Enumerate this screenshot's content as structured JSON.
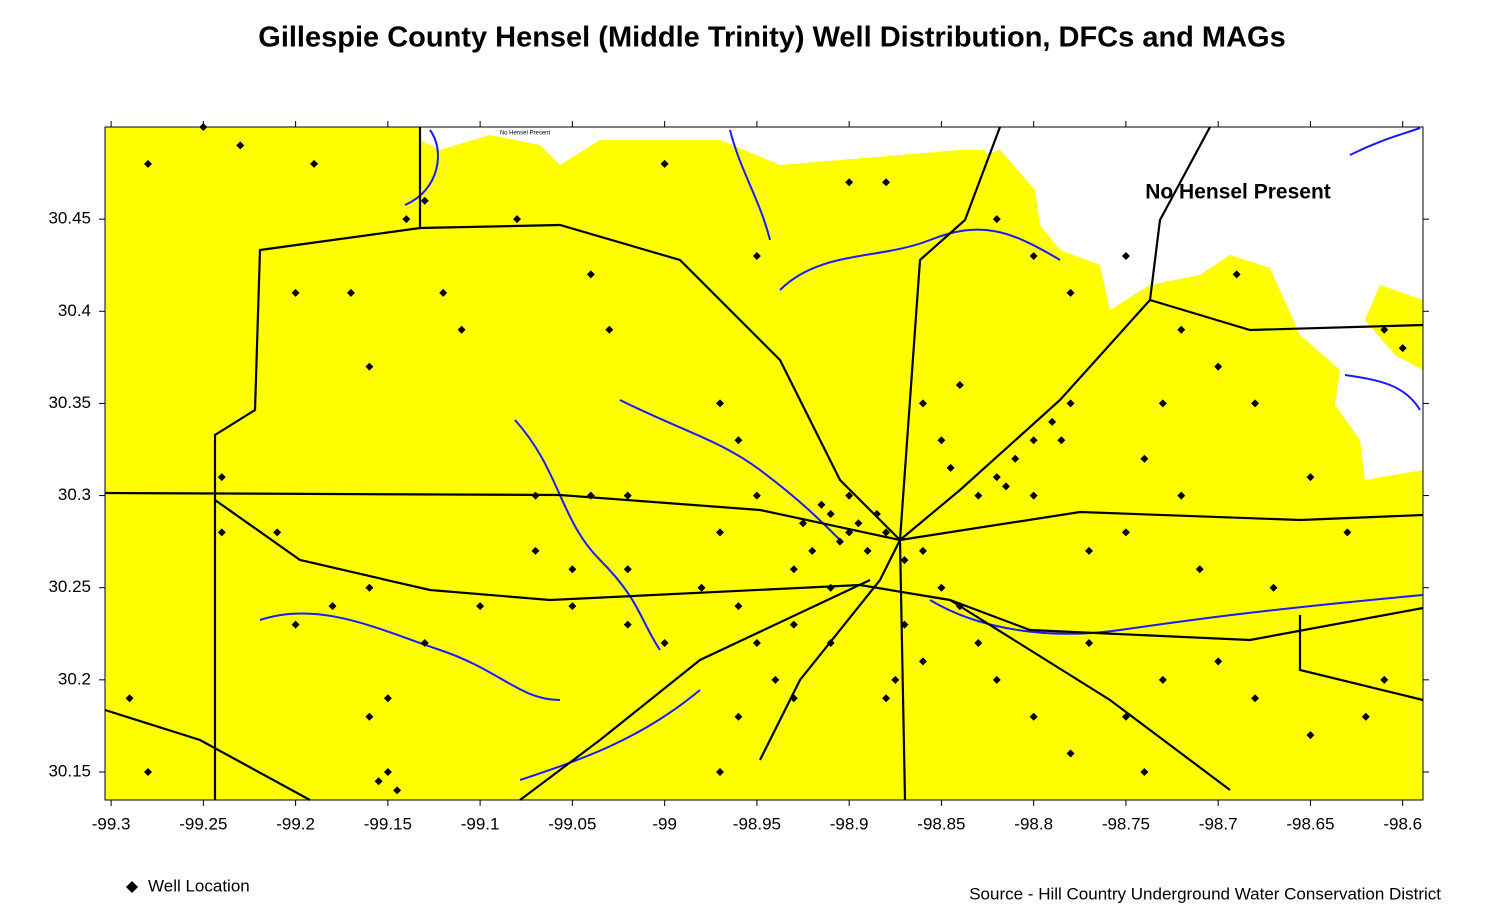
{
  "chart_data": {
    "type": "scatter",
    "title": "Gillespie County Hensel (Middle Trinity) Well Distribution, DFCs and MAGs",
    "annotations": [
      "No Hensel Present",
      "No Hensel Present"
    ],
    "source": "Source - Hill Country Underground Water Conservation District",
    "xlim": [
      -99.3033,
      -98.589
    ],
    "ylim": [
      30.1348,
      30.5
    ],
    "xticks": [
      -99.3,
      -99.25,
      -99.2,
      -99.15,
      -99.1,
      -99.05,
      -99,
      -98.95,
      -98.9,
      -98.85,
      -98.8,
      -98.75,
      -98.7,
      -98.65,
      -98.6
    ],
    "yticks": [
      30.15,
      30.2,
      30.25,
      30.3,
      30.35,
      30.4,
      30.45
    ],
    "series": [
      {
        "name": "Well Location",
        "color": "#000000",
        "x": [
          -98.91,
          -98.9,
          -98.895,
          -98.905,
          -98.92,
          -98.885,
          -98.89,
          -98.915,
          -98.9,
          -98.88,
          -98.87,
          -98.86,
          -98.925,
          -98.93,
          -98.91,
          -98.82,
          -98.815,
          -98.83,
          -98.81,
          -98.8,
          -98.79,
          -98.78,
          -98.785,
          -98.845,
          -98.85,
          -98.86,
          -98.84,
          -98.8,
          -98.87,
          -98.86,
          -98.88,
          -98.875,
          -98.93,
          -98.94,
          -98.95,
          -98.96,
          -98.97,
          -98.85,
          -98.84,
          -98.83,
          -98.82,
          -98.8,
          -98.78,
          -98.75,
          -98.73,
          -98.7,
          -98.68,
          -98.65,
          -98.62,
          -98.61,
          -98.77,
          -98.74,
          -99.15,
          -99.145,
          -99.155,
          -99.16,
          -99.15,
          -99.2,
          -99.18,
          -99.16,
          -99.13,
          -99.1,
          -99.07,
          -99.05,
          -99.02,
          -99.0,
          -99.04,
          -99.02,
          -99.07,
          -99.21,
          -99.24,
          -99.24,
          -99.28,
          -99.29,
          -99.28,
          -99.25,
          -99.23,
          -99.19,
          -99.14,
          -99.2,
          -99.17,
          -99.12,
          -99.11,
          -99.16,
          -99.13,
          -99.08,
          -99.04,
          -99.03,
          -99.0,
          -98.95,
          -98.9,
          -98.88,
          -98.82,
          -98.8,
          -98.78,
          -98.75,
          -98.72,
          -98.7,
          -98.73,
          -98.68,
          -98.74,
          -98.72,
          -98.65,
          -98.6,
          -98.61,
          -98.63,
          -98.67,
          -98.71,
          -98.75,
          -98.77,
          -98.69,
          -98.97,
          -98.98,
          -98.96,
          -98.95,
          -98.96,
          -98.97,
          -99.02,
          -99.05,
          -98.93,
          -98.91
        ],
        "y": [
          30.29,
          30.28,
          30.285,
          30.275,
          30.27,
          30.29,
          30.27,
          30.295,
          30.3,
          30.28,
          30.265,
          30.27,
          30.285,
          30.26,
          30.25,
          30.31,
          30.305,
          30.3,
          30.32,
          30.33,
          30.34,
          30.35,
          30.33,
          30.315,
          30.33,
          30.35,
          30.36,
          30.3,
          30.23,
          30.21,
          30.19,
          30.2,
          30.19,
          30.2,
          30.22,
          30.18,
          30.15,
          30.25,
          30.24,
          30.22,
          30.2,
          30.18,
          30.16,
          30.18,
          30.2,
          30.21,
          30.19,
          30.17,
          30.18,
          30.2,
          30.22,
          30.15,
          30.15,
          30.14,
          30.145,
          30.18,
          30.19,
          30.23,
          30.24,
          30.25,
          30.22,
          30.24,
          30.27,
          30.24,
          30.23,
          30.22,
          30.3,
          30.3,
          30.3,
          30.28,
          30.28,
          30.31,
          30.15,
          30.19,
          30.48,
          30.5,
          30.49,
          30.48,
          30.45,
          30.41,
          30.41,
          30.41,
          30.39,
          30.37,
          30.46,
          30.45,
          30.42,
          30.39,
          30.48,
          30.43,
          30.47,
          30.47,
          30.45,
          30.43,
          30.41,
          30.43,
          30.39,
          30.37,
          30.35,
          30.35,
          30.32,
          30.3,
          30.31,
          30.38,
          30.39,
          30.28,
          30.25,
          30.26,
          30.28,
          30.27,
          30.42,
          30.28,
          30.25,
          30.24,
          30.3,
          30.33,
          30.35,
          30.26,
          30.26,
          30.23,
          30.22
        ]
      }
    ]
  }
}
